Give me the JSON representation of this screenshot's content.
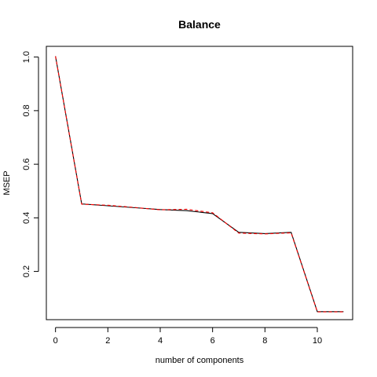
{
  "chart_data": {
    "type": "line",
    "title": "Balance",
    "xlabel": "number of components",
    "ylabel": "MSEP",
    "xlim": [
      -0.35,
      11.35
    ],
    "ylim": [
      0.02,
      1.04
    ],
    "xticks": [
      0,
      2,
      4,
      6,
      8,
      10
    ],
    "xtick_labels": [
      "0",
      "2",
      "4",
      "6",
      "8",
      "10"
    ],
    "yticks": [
      0.2,
      0.4,
      0.6,
      0.8,
      1.0
    ],
    "ytick_labels": [
      "0.2",
      "0.4",
      "0.6",
      "0.8",
      "1.0"
    ],
    "grid": false,
    "legend": "none",
    "x": [
      0,
      1,
      2,
      3,
      4,
      5,
      6,
      7,
      8,
      9,
      10,
      11
    ],
    "series": [
      {
        "values": [
          1.003,
          0.452,
          0.445,
          0.438,
          0.431,
          0.427,
          0.416,
          0.346,
          0.341,
          0.346,
          0.05,
          0.05
        ],
        "color": "#000000",
        "style": "solid"
      },
      {
        "values": [
          1.003,
          0.451,
          0.447,
          0.439,
          0.43,
          0.432,
          0.419,
          0.343,
          0.34,
          0.344,
          0.049,
          0.049
        ],
        "color": "#ff0000",
        "style": "dashed"
      }
    ]
  }
}
